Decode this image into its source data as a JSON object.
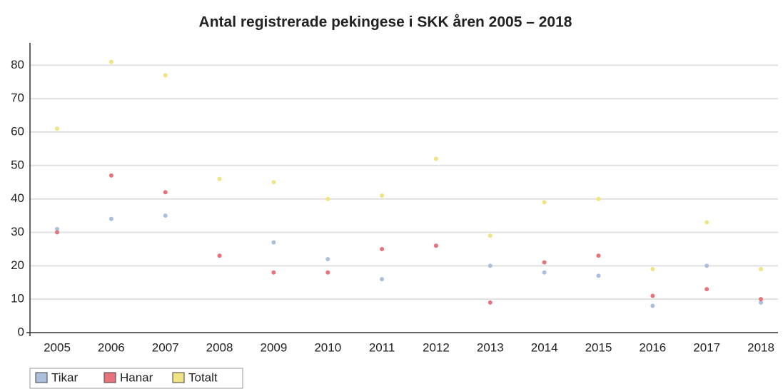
{
  "chart_data": {
    "type": "line",
    "title": "Antal registrerade pekingese i SKK åren 2005 – 2018",
    "categories": [
      "2005",
      "2006",
      "2007",
      "2008",
      "2009",
      "2010",
      "2011",
      "2012",
      "2013",
      "2014",
      "2015",
      "2016",
      "2017",
      "2018"
    ],
    "series": [
      {
        "name": "Tikar",
        "color": "#a9bfdc",
        "values": [
          31,
          34,
          35,
          23,
          27,
          22,
          16,
          26,
          20,
          18,
          17,
          8,
          20,
          9
        ]
      },
      {
        "name": "Hanar",
        "color": "#e8737a",
        "values": [
          30,
          47,
          42,
          23,
          18,
          18,
          25,
          26,
          9,
          21,
          23,
          11,
          13,
          10
        ]
      },
      {
        "name": "Totalt",
        "color": "#f0e384",
        "values": [
          61,
          81,
          77,
          46,
          45,
          40,
          41,
          52,
          29,
          39,
          40,
          19,
          33,
          19
        ]
      }
    ],
    "ylim": [
      0,
      85
    ],
    "yticks": [
      0,
      10,
      20,
      30,
      40,
      50,
      60,
      70,
      80
    ],
    "grid": true
  }
}
